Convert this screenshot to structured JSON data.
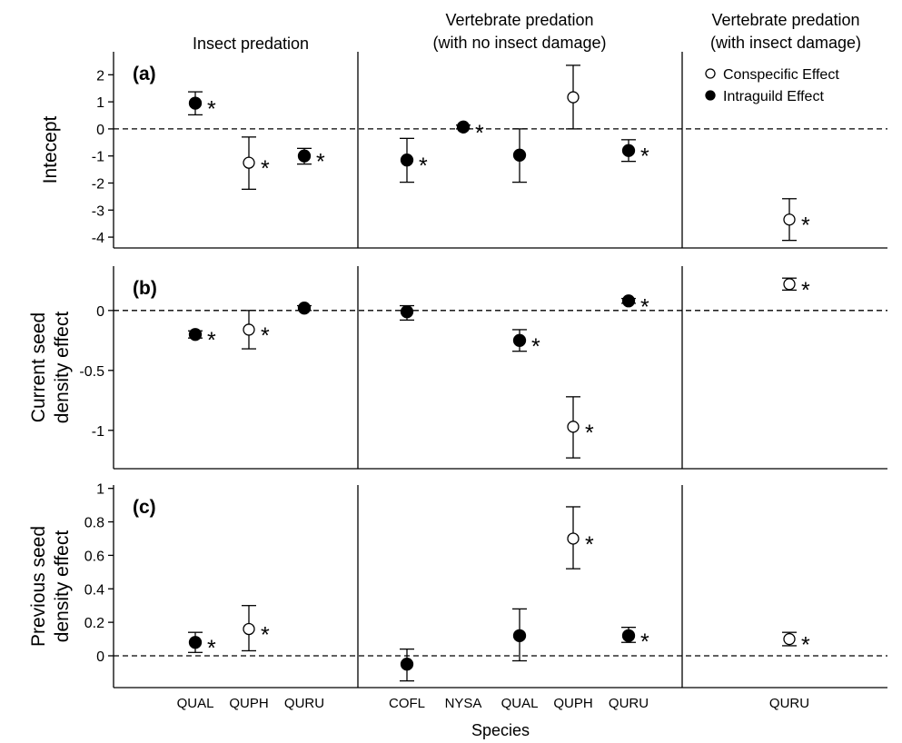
{
  "chart_data": {
    "type": "scatter",
    "xlabel": "Species",
    "legend": {
      "placement": "top-right",
      "entries": [
        {
          "label": "Conspecific Effect",
          "marker": "open-circle"
        },
        {
          "label": "Intraguild Effect",
          "marker": "filled-circle"
        }
      ]
    },
    "columns": [
      {
        "title": [
          "Insect predation"
        ],
        "species": [
          "QUAL",
          "QUPH",
          "QURU"
        ]
      },
      {
        "title": [
          "Vertebrate predation",
          "(with no insect damage)"
        ],
        "species": [
          "COFL",
          "NYSA",
          "QUAL",
          "QUPH",
          "QURU"
        ]
      },
      {
        "title": [
          "Vertebrate predation",
          "(with insect damage)"
        ],
        "species": [
          "QURU"
        ]
      }
    ],
    "rows": [
      {
        "tag": "(a)",
        "ylabel": [
          "Intecept"
        ],
        "ylim": [
          -4.4,
          2.85
        ],
        "yticks": [
          2,
          1,
          0,
          -1,
          -2,
          -3,
          -4
        ],
        "ytick_labels": [
          "2",
          "1",
          "0",
          "-1",
          "-2",
          "-3",
          "-4"
        ],
        "reference_line": 0,
        "points": [
          {
            "col": 0,
            "species": "QUAL",
            "effect": "Intraguild",
            "y": 0.95,
            "lo": 0.52,
            "hi": 1.37,
            "sig": true
          },
          {
            "col": 0,
            "species": "QUPH",
            "effect": "Conspecific",
            "y": -1.25,
            "lo": -2.23,
            "hi": -0.3,
            "sig": true
          },
          {
            "col": 0,
            "species": "QURU",
            "effect": "Intraguild",
            "y": -1.0,
            "lo": -1.3,
            "hi": -0.72,
            "sig": true
          },
          {
            "col": 1,
            "species": "COFL",
            "effect": "Intraguild",
            "y": -1.15,
            "lo": -1.97,
            "hi": -0.35,
            "sig": true
          },
          {
            "col": 1,
            "species": "NYSA",
            "effect": "Intraguild",
            "y": 0.07,
            "lo": 0.0,
            "hi": 0.14,
            "sig": true
          },
          {
            "col": 1,
            "species": "QUAL",
            "effect": "Intraguild",
            "y": -0.97,
            "lo": -1.97,
            "hi": 0.0,
            "sig": false
          },
          {
            "col": 1,
            "species": "QUPH",
            "effect": "Conspecific",
            "y": 1.17,
            "lo": 0.0,
            "hi": 2.35,
            "sig": false
          },
          {
            "col": 1,
            "species": "QURU",
            "effect": "Intraguild",
            "y": -0.8,
            "lo": -1.2,
            "hi": -0.4,
            "sig": true
          },
          {
            "col": 2,
            "species": "QURU",
            "effect": "Conspecific",
            "y": -3.35,
            "lo": -4.12,
            "hi": -2.58,
            "sig": true
          }
        ]
      },
      {
        "tag": "(b)",
        "ylabel": [
          "Current seed",
          "density effect"
        ],
        "ylim": [
          -1.32,
          0.37
        ],
        "yticks": [
          0,
          -0.5,
          -1
        ],
        "ytick_labels": [
          "0",
          "-0.5",
          "-1"
        ],
        "reference_line": 0,
        "points": [
          {
            "col": 0,
            "species": "QUAL",
            "effect": "Intraguild",
            "y": -0.2,
            "lo": -0.23,
            "hi": -0.17,
            "sig": true
          },
          {
            "col": 0,
            "species": "QUPH",
            "effect": "Conspecific",
            "y": -0.16,
            "lo": -0.32,
            "hi": 0.0,
            "sig": true
          },
          {
            "col": 0,
            "species": "QURU",
            "effect": "Intraguild",
            "y": 0.02,
            "lo": 0.0,
            "hi": 0.04,
            "sig": false
          },
          {
            "col": 1,
            "species": "COFL",
            "effect": "Intraguild",
            "y": -0.01,
            "lo": -0.08,
            "hi": 0.04,
            "sig": false
          },
          {
            "col": 1,
            "species": "QUAL",
            "effect": "Intraguild",
            "y": -0.25,
            "lo": -0.34,
            "hi": -0.16,
            "sig": true
          },
          {
            "col": 1,
            "species": "QUPH",
            "effect": "Conspecific",
            "y": -0.97,
            "lo": -1.23,
            "hi": -0.72,
            "sig": true
          },
          {
            "col": 1,
            "species": "QURU",
            "effect": "Intraguild",
            "y": 0.08,
            "lo": 0.06,
            "hi": 0.1,
            "sig": true
          },
          {
            "col": 2,
            "species": "QURU",
            "effect": "Conspecific",
            "y": 0.22,
            "lo": 0.17,
            "hi": 0.27,
            "sig": true
          }
        ]
      },
      {
        "tag": "(c)",
        "ylabel": [
          "Previous seed",
          "density effect"
        ],
        "ylim": [
          -0.19,
          1.02
        ],
        "yticks": [
          1,
          0.8,
          0.6,
          0.4,
          0.2,
          0
        ],
        "ytick_labels": [
          "1",
          "0.8",
          "0.6",
          "0.4",
          "0.2",
          "0"
        ],
        "reference_line": 0,
        "points": [
          {
            "col": 0,
            "species": "QUAL",
            "effect": "Intraguild",
            "y": 0.08,
            "lo": 0.02,
            "hi": 0.14,
            "sig": true
          },
          {
            "col": 0,
            "species": "QUPH",
            "effect": "Conspecific",
            "y": 0.16,
            "lo": 0.03,
            "hi": 0.3,
            "sig": true
          },
          {
            "col": 1,
            "species": "COFL",
            "effect": "Intraguild",
            "y": -0.05,
            "lo": -0.15,
            "hi": 0.04,
            "sig": false
          },
          {
            "col": 1,
            "species": "QUAL",
            "effect": "Intraguild",
            "y": 0.12,
            "lo": -0.03,
            "hi": 0.28,
            "sig": false
          },
          {
            "col": 1,
            "species": "QUPH",
            "effect": "Conspecific",
            "y": 0.7,
            "lo": 0.52,
            "hi": 0.89,
            "sig": true
          },
          {
            "col": 1,
            "species": "QURU",
            "effect": "Intraguild",
            "y": 0.12,
            "lo": 0.08,
            "hi": 0.17,
            "sig": true
          },
          {
            "col": 2,
            "species": "QURU",
            "effect": "Conspecific",
            "y": 0.1,
            "lo": 0.06,
            "hi": 0.14,
            "sig": true
          }
        ]
      }
    ],
    "significance_marker": "*",
    "grid": false
  }
}
